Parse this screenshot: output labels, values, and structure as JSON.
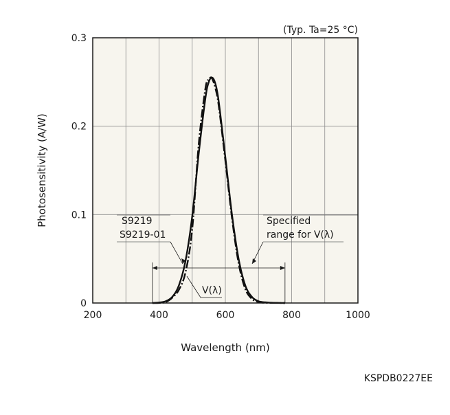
{
  "chart_data": {
    "type": "line",
    "condition_note": "(Typ. Ta=25 °C)",
    "xlabel": "Wavelength (nm)",
    "ylabel": "Photosensitivity (A/W)",
    "xlim": [
      200,
      1000
    ],
    "ylim": [
      0,
      0.3
    ],
    "x_ticks": [
      "200",
      "400",
      "600",
      "800",
      "1000"
    ],
    "y_ticks": [
      "0",
      "0.1",
      "0.2",
      "0.3"
    ],
    "grid": true,
    "series": [
      {
        "name": "S9219 S9219-01",
        "style": "solid",
        "x": [
          380,
          400,
          420,
          440,
          460,
          480,
          500,
          520,
          540,
          550,
          560,
          570,
          580,
          600,
          620,
          640,
          660,
          680,
          700,
          720,
          740,
          760,
          780
        ],
        "y": [
          0.0,
          0.0005,
          0.002,
          0.007,
          0.02,
          0.048,
          0.098,
          0.17,
          0.232,
          0.25,
          0.255,
          0.248,
          0.228,
          0.165,
          0.1,
          0.05,
          0.02,
          0.007,
          0.002,
          0.0008,
          0.0003,
          0.0001,
          0.0
        ]
      },
      {
        "name": "V(λ)",
        "style": "dash-dot",
        "x": [
          380,
          400,
          420,
          440,
          460,
          480,
          500,
          520,
          540,
          550,
          555,
          560,
          570,
          580,
          600,
          620,
          640,
          660,
          680,
          700,
          720,
          740,
          760,
          780
        ],
        "y": [
          0.0,
          0.0001,
          0.001,
          0.006,
          0.015,
          0.035,
          0.083,
          0.181,
          0.243,
          0.253,
          0.255,
          0.254,
          0.243,
          0.223,
          0.161,
          0.096,
          0.045,
          0.016,
          0.0047,
          0.0011,
          0.00027,
          7e-05,
          2e-05,
          0.0
        ]
      }
    ],
    "annotations": {
      "sensor_label_1": "S9219",
      "sensor_label_2": "S9219-01",
      "vlambda_label": "V(λ)",
      "range_label_1": "Specified",
      "range_label_2": "range for V(λ)",
      "specified_range": [
        380,
        780
      ]
    },
    "doc_code": "KSPDB0227EE"
  }
}
